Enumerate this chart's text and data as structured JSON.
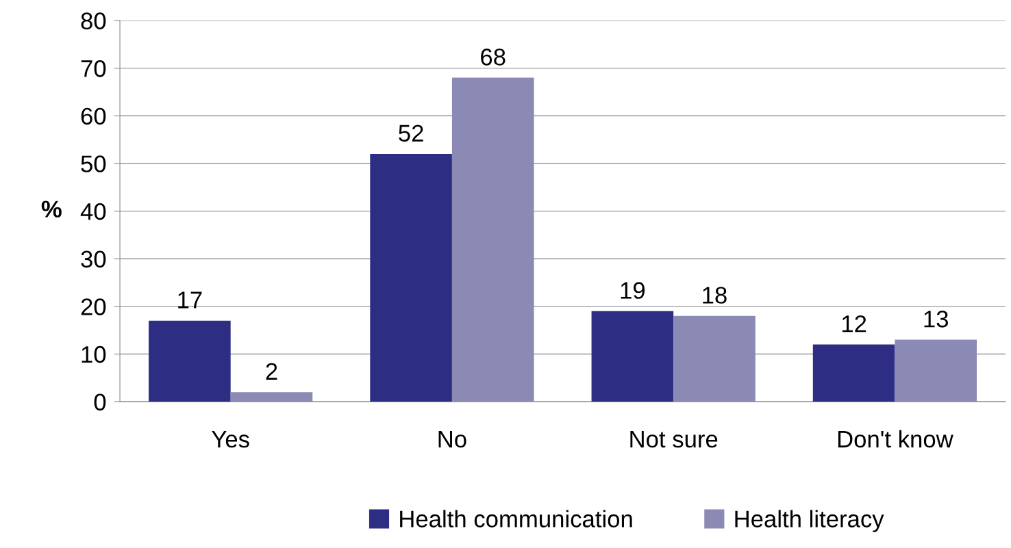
{
  "chart_data": {
    "type": "bar",
    "ylabel": "%",
    "categories": [
      "Yes",
      "No",
      "Not sure",
      "Don't know"
    ],
    "series": [
      {
        "name": "Health communication",
        "color": "#2e2d84",
        "values": [
          17,
          52,
          19,
          12
        ]
      },
      {
        "name": "Health literacy",
        "color": "#8a8ab5",
        "values": [
          2,
          68,
          18,
          13
        ]
      }
    ],
    "ylim": [
      0,
      80
    ],
    "yticks": [
      0,
      10,
      20,
      30,
      40,
      50,
      60,
      70,
      80
    ],
    "grid": "y",
    "legend": "bottom",
    "data_labels": true
  }
}
